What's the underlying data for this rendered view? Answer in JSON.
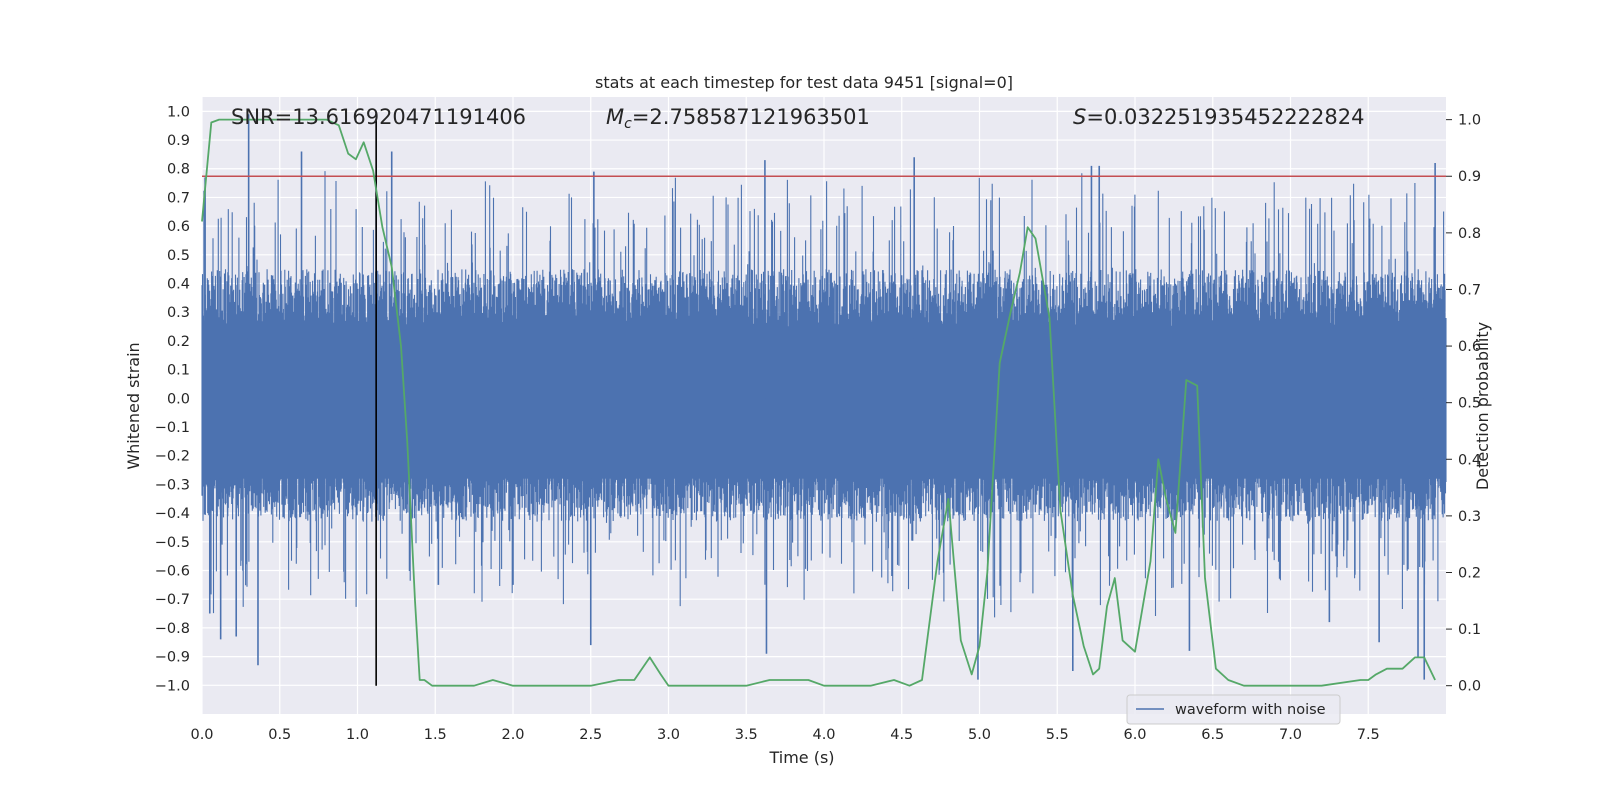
{
  "chart_data": {
    "type": "line",
    "title": "stats at each timestep for test data 9451 [signal=0]",
    "xlabel": "Time (s)",
    "ylabel": "Whitened strain",
    "ylabel_right": "Detection probability",
    "xlim": [
      0.0,
      8.0
    ],
    "ylim": [
      -1.1,
      1.05
    ],
    "ylim_right": [
      -0.05,
      1.04
    ],
    "x_ticks": [
      "0.0",
      "0.5",
      "1.0",
      "1.5",
      "2.0",
      "2.5",
      "3.0",
      "3.5",
      "4.0",
      "4.5",
      "5.0",
      "5.5",
      "6.0",
      "6.5",
      "7.0",
      "7.5"
    ],
    "y_ticks": [
      "−1.0",
      "−0.9",
      "−0.8",
      "−0.7",
      "−0.6",
      "−0.5",
      "−0.4",
      "−0.3",
      "−0.2",
      "−0.1",
      "0.0",
      "0.1",
      "0.2",
      "0.3",
      "0.4",
      "0.5",
      "0.6",
      "0.7",
      "0.8",
      "0.9",
      "1.0"
    ],
    "y_right_ticks": [
      "0.0",
      "0.1",
      "0.2",
      "0.3",
      "0.4",
      "0.5",
      "0.6",
      "0.7",
      "0.8",
      "0.9",
      "1.0"
    ],
    "grid": true,
    "legend_position": "lower-right",
    "annotations": {
      "snr": "SNR=13.616920471191406",
      "mc_symbol": "M",
      "mc_sub": "c",
      "mc_value": "=2.758587121963501",
      "s_symbol": "S",
      "s_value": "=0.032251935452222824"
    },
    "vertical_marker_x": 1.12,
    "threshold_right": 0.9,
    "series": [
      {
        "name": "waveform with noise",
        "axis": "left",
        "kind": "noise",
        "color": "#4c72b0",
        "envelope_low": -0.43,
        "envelope_high": 0.45,
        "spikes": [
          {
            "x": 0.02,
            "y": 0.77
          },
          {
            "x": 0.05,
            "y": -0.75
          },
          {
            "x": 0.12,
            "y": -0.84
          },
          {
            "x": 0.22,
            "y": -0.83
          },
          {
            "x": 0.3,
            "y": 0.99
          },
          {
            "x": 0.36,
            "y": -0.93
          },
          {
            "x": 0.64,
            "y": 0.86
          },
          {
            "x": 1.12,
            "y": 0.77
          },
          {
            "x": 1.22,
            "y": 0.86
          },
          {
            "x": 1.52,
            "y": -0.65
          },
          {
            "x": 2.0,
            "y": -0.65
          },
          {
            "x": 2.5,
            "y": -0.86
          },
          {
            "x": 2.52,
            "y": 0.79
          },
          {
            "x": 3.62,
            "y": 0.83
          },
          {
            "x": 3.63,
            "y": -0.89
          },
          {
            "x": 4.58,
            "y": 0.84
          },
          {
            "x": 4.99,
            "y": -0.98
          },
          {
            "x": 5.6,
            "y": -0.95
          },
          {
            "x": 5.72,
            "y": 0.81
          },
          {
            "x": 5.77,
            "y": 0.81
          },
          {
            "x": 6.35,
            "y": -0.88
          },
          {
            "x": 7.25,
            "y": -0.78
          },
          {
            "x": 7.57,
            "y": -0.85
          },
          {
            "x": 7.82,
            "y": -0.9
          },
          {
            "x": 7.86,
            "y": -0.98
          },
          {
            "x": 7.93,
            "y": 0.82
          }
        ]
      },
      {
        "axis": "right",
        "color": "#55a868",
        "x": [
          0.0,
          0.06,
          0.11,
          0.8,
          0.88,
          0.94,
          0.99,
          1.04,
          1.1,
          1.16,
          1.22,
          1.28,
          1.32,
          1.37,
          1.4,
          1.43,
          1.48,
          1.6,
          1.75,
          1.87,
          2.0,
          2.1,
          2.3,
          2.5,
          2.68,
          2.78,
          2.88,
          2.95,
          3.0,
          3.05,
          3.3,
          3.5,
          3.65,
          3.75,
          3.9,
          4.0,
          4.1,
          4.3,
          4.45,
          4.55,
          4.63,
          4.73,
          4.8,
          4.88,
          4.95,
          5.0,
          5.05,
          5.13,
          5.2,
          5.26,
          5.31,
          5.36,
          5.45,
          5.52,
          5.6,
          5.67,
          5.73,
          5.77,
          5.82,
          5.87,
          5.92,
          6.0,
          6.1,
          6.15,
          6.2,
          6.26,
          6.33,
          6.4,
          6.45,
          6.52,
          6.6,
          6.7,
          6.8,
          7.0,
          7.2,
          7.45,
          7.5,
          7.55,
          7.62,
          7.72,
          7.8,
          7.86,
          7.93
        ],
        "y": [
          0.82,
          0.995,
          1.0,
          1.0,
          0.99,
          0.94,
          0.93,
          0.96,
          0.91,
          0.81,
          0.74,
          0.6,
          0.43,
          0.15,
          0.01,
          0.01,
          0.0,
          0.0,
          0.0,
          0.01,
          0.0,
          0.0,
          0.0,
          0.0,
          0.01,
          0.01,
          0.05,
          0.02,
          0.0,
          0.0,
          0.0,
          0.0,
          0.01,
          0.01,
          0.01,
          0.0,
          0.0,
          0.0,
          0.01,
          0.0,
          0.01,
          0.22,
          0.33,
          0.08,
          0.02,
          0.07,
          0.2,
          0.57,
          0.66,
          0.73,
          0.81,
          0.79,
          0.65,
          0.31,
          0.16,
          0.07,
          0.02,
          0.03,
          0.14,
          0.19,
          0.08,
          0.06,
          0.22,
          0.4,
          0.33,
          0.27,
          0.54,
          0.53,
          0.19,
          0.03,
          0.01,
          0.0,
          0.0,
          0.0,
          0.0,
          0.01,
          0.01,
          0.02,
          0.03,
          0.03,
          0.05,
          0.05,
          0.01
        ]
      },
      {
        "axis": "right",
        "kind": "threshold",
        "color": "#c44e52"
      }
    ]
  }
}
